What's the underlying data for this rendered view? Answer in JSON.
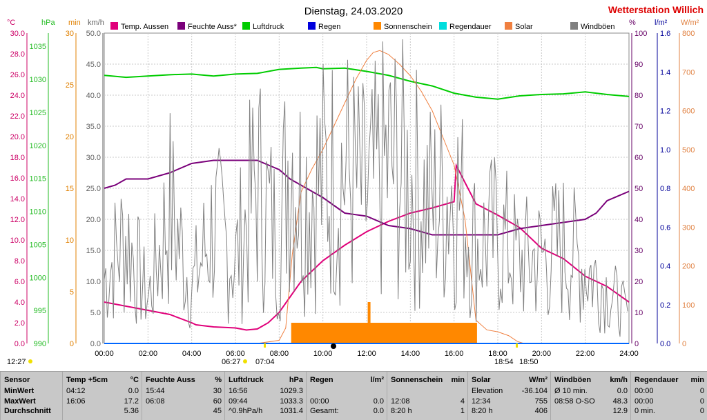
{
  "header": {
    "title": "Dienstag, 24.03.2020",
    "station": "Wetterstation Willich"
  },
  "axes": {
    "left": [
      {
        "unit": "°C",
        "color": "#cc0066",
        "ticks": [
          "0.0",
          "2.0",
          "4.0",
          "6.0",
          "8.0",
          "10.0",
          "12.0",
          "14.0",
          "16.0",
          "18.0",
          "20.0",
          "22.0",
          "24.0",
          "26.0",
          "28.0",
          "30.0"
        ]
      },
      {
        "unit": "hPa",
        "color": "#22bb22",
        "ticks": [
          "990",
          "995",
          "1000",
          "1005",
          "1010",
          "1015",
          "1020",
          "1025",
          "1030",
          "1035"
        ]
      },
      {
        "unit": "min",
        "color": "#e08000",
        "ticks": [
          "0",
          "5",
          "10",
          "15",
          "20",
          "25",
          "30"
        ]
      },
      {
        "unit": "km/h",
        "color": "#606060",
        "ticks": [
          "0.0",
          "5.0",
          "10.0",
          "15.0",
          "20.0",
          "25.0",
          "30.0",
          "35.0",
          "40.0",
          "45.0",
          "50.0"
        ]
      }
    ],
    "right": [
      {
        "unit": "%",
        "color": "#660066",
        "ticks": [
          "0",
          "10",
          "20",
          "30",
          "40",
          "50",
          "60",
          "70",
          "80",
          "90",
          "100"
        ]
      },
      {
        "unit": "l/m²",
        "color": "#000099",
        "ticks": [
          "0.0",
          "0.2",
          "0.4",
          "0.6",
          "0.8",
          "1.0",
          "1.2",
          "1.4",
          "1.6"
        ]
      },
      {
        "unit": "W/m²",
        "color": "#e08040",
        "ticks": [
          "0",
          "100",
          "200",
          "300",
          "400",
          "500",
          "600",
          "700",
          "800"
        ]
      }
    ],
    "x_ticks": [
      "00:00",
      "02:00",
      "04:00",
      "06:00",
      "08:00",
      "10:00",
      "12:00",
      "14:00",
      "16:00",
      "18:00",
      "20:00",
      "22:00",
      "24:00"
    ]
  },
  "legend": [
    {
      "label": "Temp. Aussen",
      "color": "#e0007a"
    },
    {
      "label": "Feuchte Auss*",
      "color": "#7a007a"
    },
    {
      "label": "Luftdruck",
      "color": "#00cc00"
    },
    {
      "label": "Regen",
      "color": "#0000dd"
    },
    {
      "label": "Sonnenschein",
      "color": "#ff8800"
    },
    {
      "label": "Regendauer",
      "color": "#00dddd"
    },
    {
      "label": "Solar",
      "color": "#f08040"
    },
    {
      "label": "Windböen",
      "color": "#808080"
    }
  ],
  "markers": {
    "now": "12:27",
    "sunrise": "06:27",
    "sunrise_alt": "07:04",
    "sunset": "18:54",
    "sunset_alt": "18:50"
  },
  "chart_data": {
    "type": "line",
    "x_unit": "hour",
    "xlim": [
      0,
      24
    ],
    "series": [
      {
        "name": "Temp. Aussen",
        "axis": "°C",
        "ylim": [
          0,
          30
        ],
        "color": "#e0007a",
        "x": [
          0,
          1,
          2,
          3,
          4,
          4.2,
          5,
          6,
          6.5,
          7,
          7.5,
          8,
          8.5,
          9,
          10,
          11,
          12,
          13,
          14,
          15,
          16,
          16.1,
          17,
          18,
          19,
          20,
          21,
          22,
          23,
          24
        ],
        "y": [
          4.0,
          3.6,
          3.2,
          2.8,
          2.0,
          1.8,
          1.6,
          1.5,
          1.3,
          1.4,
          2.0,
          3.0,
          4.5,
          6.0,
          8.0,
          9.5,
          10.8,
          11.8,
          12.6,
          13.1,
          13.7,
          17.2,
          13.5,
          12.4,
          11.2,
          9.2,
          8.2,
          6.5,
          5.5,
          4.0
        ]
      },
      {
        "name": "Feuchte Auss*",
        "axis": "%",
        "ylim": [
          0,
          100
        ],
        "color": "#7a007a",
        "x": [
          0,
          0.5,
          1,
          2,
          3,
          4,
          5,
          6,
          7,
          8,
          8.5,
          9,
          10,
          11,
          12,
          13,
          14,
          15,
          16,
          17,
          18,
          19,
          20,
          21,
          22,
          22.5,
          23,
          24
        ],
        "y": [
          50,
          51,
          53,
          53,
          55,
          58,
          59,
          59,
          59,
          56,
          53,
          51,
          47,
          42,
          41,
          38,
          37,
          35,
          35,
          35,
          35,
          37,
          38,
          39,
          40,
          42,
          46,
          49
        ]
      },
      {
        "name": "Luftdruck",
        "axis": "hPa",
        "ylim": [
          990,
          1037
        ],
        "color": "#00cc00",
        "x": [
          0,
          1,
          2,
          3,
          4,
          5,
          6,
          7,
          8,
          9,
          9.7,
          10,
          11,
          12,
          13,
          14,
          15,
          16,
          17,
          18,
          19,
          20,
          21,
          22,
          23,
          24
        ],
        "y": [
          1030.6,
          1030.3,
          1030.5,
          1030.7,
          1030.8,
          1030.5,
          1030.8,
          1030.9,
          1031.5,
          1031.7,
          1031.8,
          1031.6,
          1031.7,
          1031.2,
          1030.6,
          1029.7,
          1029.0,
          1027.9,
          1027.3,
          1027.0,
          1027.5,
          1027.7,
          1027.8,
          1028.1,
          1027.7,
          1027.4
        ]
      },
      {
        "name": "Solar",
        "axis": "W/m²",
        "ylim": [
          0,
          800
        ],
        "color": "#f08040",
        "x": [
          0,
          7,
          8,
          8.3,
          8.6,
          9,
          9.5,
          10,
          10.5,
          11,
          11.5,
          12,
          12.3,
          12.6,
          13,
          13.5,
          14,
          14.5,
          15,
          15.5,
          16,
          16.5,
          17,
          17.5,
          18,
          18.5,
          18.9,
          19.2,
          24
        ],
        "y": [
          0,
          0,
          8,
          40,
          230,
          390,
          450,
          500,
          560,
          620,
          680,
          730,
          750,
          755,
          745,
          720,
          690,
          650,
          600,
          530,
          460,
          320,
          60,
          35,
          30,
          20,
          5,
          0,
          0
        ]
      },
      {
        "name": "Windböen",
        "axis": "km/h",
        "ylim": [
          0,
          50
        ],
        "color": "#808080",
        "x": [
          0,
          1,
          2,
          3,
          4,
          5,
          6,
          7,
          8,
          8.5,
          9,
          10,
          11,
          12,
          13,
          14,
          15,
          16,
          17,
          18,
          19,
          20,
          21,
          22,
          23,
          24
        ],
        "y": [
          12,
          20,
          8,
          25,
          10,
          22,
          15,
          30,
          18,
          38,
          28,
          30,
          32,
          26,
          33,
          30,
          25,
          29,
          18,
          20,
          15,
          16,
          18,
          14,
          10,
          5
        ]
      },
      {
        "name": "Sonnenschein",
        "axis": "min",
        "ylim": [
          0,
          30
        ],
        "color": "#ff8800",
        "type": "bar",
        "x": [
          8.6,
          12.1,
          12.2,
          17
        ],
        "y": [
          2,
          4,
          2,
          2
        ]
      },
      {
        "name": "Regen",
        "axis": "l/m²",
        "ylim": [
          0,
          1.6
        ],
        "color": "#0000dd",
        "x": [
          0,
          24
        ],
        "y": [
          0,
          0
        ]
      }
    ]
  },
  "table": {
    "headers": [
      {
        "label": "Sensor",
        "unit": ""
      },
      {
        "label": "Temp +5cm",
        "unit": "°C"
      },
      {
        "label": "Feuchte Auss",
        "unit": "%"
      },
      {
        "label": "Luftdruck",
        "unit": "hPa"
      },
      {
        "label": "Regen",
        "unit": "l/m²"
      },
      {
        "label": "Sonnenschein",
        "unit": "min"
      },
      {
        "label": "Solar",
        "unit": "W/m²"
      },
      {
        "label": "Windböen",
        "unit": "km/h"
      },
      {
        "label": "Regendauer",
        "unit": "min"
      }
    ],
    "rows": [
      {
        "name": "MinWert",
        "cells": [
          [
            "04:12",
            "0.0"
          ],
          [
            "15:44",
            "30"
          ],
          [
            "16:56",
            "1029.3"
          ],
          [
            "",
            ""
          ],
          [
            "",
            ""
          ],
          [
            "Elevation",
            "-36.104"
          ],
          [
            "Ø 10 min.",
            "0.0"
          ],
          [
            "00:00",
            "0"
          ]
        ]
      },
      {
        "name": "MaxWert",
        "cells": [
          [
            "16:06",
            "17.2"
          ],
          [
            "06:08",
            "60"
          ],
          [
            "09:44",
            "1033.3"
          ],
          [
            "00:00",
            "0.0"
          ],
          [
            "12:08",
            "4"
          ],
          [
            "12:34",
            "755"
          ],
          [
            "08:58  O-SO",
            "48.3"
          ],
          [
            "00:00",
            "0"
          ]
        ]
      },
      {
        "name": "Durchschnitt",
        "cells": [
          [
            "",
            "5.36"
          ],
          [
            "",
            "45"
          ],
          [
            "^0.9hPa/h",
            "1031.4"
          ],
          [
            "Gesamt:",
            "0.0"
          ],
          [
            "8:20 h",
            "1"
          ],
          [
            "8:20 h",
            "406"
          ],
          [
            "",
            "12.9"
          ],
          [
            "0 min.",
            "0"
          ]
        ]
      }
    ]
  }
}
